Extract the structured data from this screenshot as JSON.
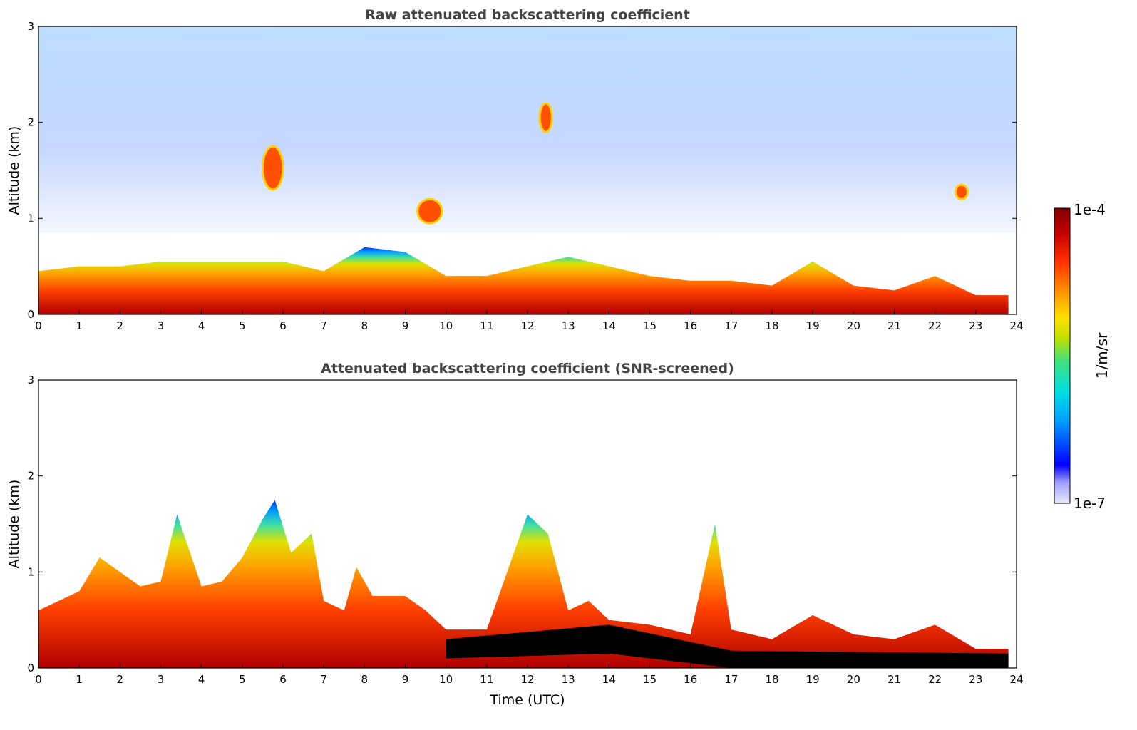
{
  "chart_data": [
    {
      "type": "heatmap",
      "title": "Raw attenuated backscattering coefficient",
      "xlabel": "",
      "ylabel": "Altitude (km)",
      "xlim": [
        0,
        24
      ],
      "ylim": [
        0,
        3
      ],
      "xticks": [
        "0",
        "1",
        "2",
        "3",
        "4",
        "5",
        "6",
        "7",
        "8",
        "9",
        "10",
        "11",
        "12",
        "13",
        "14",
        "15",
        "16",
        "17",
        "18",
        "19",
        "20",
        "21",
        "22",
        "23",
        "24"
      ],
      "yticks": [
        "0",
        "1",
        "2",
        "3"
      ],
      "layer_top_km": [
        {
          "t": 0,
          "h": 0.45
        },
        {
          "t": 1,
          "h": 0.5
        },
        {
          "t": 2,
          "h": 0.5
        },
        {
          "t": 3,
          "h": 0.55
        },
        {
          "t": 4,
          "h": 0.55
        },
        {
          "t": 5,
          "h": 0.55
        },
        {
          "t": 6,
          "h": 0.55
        },
        {
          "t": 7,
          "h": 0.45
        },
        {
          "t": 8,
          "h": 0.7
        },
        {
          "t": 9,
          "h": 0.65
        },
        {
          "t": 10,
          "h": 0.4
        },
        {
          "t": 11,
          "h": 0.4
        },
        {
          "t": 12,
          "h": 0.5
        },
        {
          "t": 13,
          "h": 0.6
        },
        {
          "t": 14,
          "h": 0.5
        },
        {
          "t": 15,
          "h": 0.4
        },
        {
          "t": 16,
          "h": 0.35
        },
        {
          "t": 17,
          "h": 0.35
        },
        {
          "t": 18,
          "h": 0.3
        },
        {
          "t": 19,
          "h": 0.55
        },
        {
          "t": 20,
          "h": 0.3
        },
        {
          "t": 21,
          "h": 0.25
        },
        {
          "t": 22,
          "h": 0.4
        },
        {
          "t": 23,
          "h": 0.2
        },
        {
          "t": 23.8,
          "h": 0.2
        }
      ],
      "features": [
        {
          "label": "cloud",
          "t0": 5.5,
          "t1": 6.0,
          "h0": 1.3,
          "h1": 1.75
        },
        {
          "label": "cloud",
          "t0": 9.3,
          "t1": 9.9,
          "h0": 0.95,
          "h1": 1.2
        },
        {
          "label": "cloud",
          "t0": 12.3,
          "t1": 12.6,
          "h0": 1.9,
          "h1": 2.2
        },
        {
          "label": "cloud",
          "t0": 22.5,
          "t1": 22.8,
          "h0": 1.2,
          "h1": 1.35
        }
      ]
    },
    {
      "type": "heatmap",
      "title": "Attenuated backscattering coefficient (SNR-screened)",
      "xlabel": "Time (UTC)",
      "ylabel": "Altitude (km)",
      "xlim": [
        0,
        24
      ],
      "ylim": [
        0,
        3
      ],
      "xticks": [
        "0",
        "1",
        "2",
        "3",
        "4",
        "5",
        "6",
        "7",
        "8",
        "9",
        "10",
        "11",
        "12",
        "13",
        "14",
        "15",
        "16",
        "17",
        "18",
        "19",
        "20",
        "21",
        "22",
        "23",
        "24"
      ],
      "yticks": [
        "0",
        "1",
        "2",
        "3"
      ],
      "mixing_top_km": [
        {
          "t": 0,
          "h": 0.6
        },
        {
          "t": 1,
          "h": 0.8
        },
        {
          "t": 1.5,
          "h": 1.15
        },
        {
          "t": 2,
          "h": 1.0
        },
        {
          "t": 2.5,
          "h": 0.85
        },
        {
          "t": 3,
          "h": 0.9
        },
        {
          "t": 3.4,
          "h": 1.6
        },
        {
          "t": 4,
          "h": 0.85
        },
        {
          "t": 4.5,
          "h": 0.9
        },
        {
          "t": 5,
          "h": 1.15
        },
        {
          "t": 5.5,
          "h": 1.55
        },
        {
          "t": 5.8,
          "h": 1.75
        },
        {
          "t": 6.2,
          "h": 1.2
        },
        {
          "t": 6.7,
          "h": 1.4
        },
        {
          "t": 7,
          "h": 0.7
        },
        {
          "t": 7.5,
          "h": 0.6
        },
        {
          "t": 7.8,
          "h": 1.05
        },
        {
          "t": 8.2,
          "h": 0.75
        },
        {
          "t": 9,
          "h": 0.75
        },
        {
          "t": 9.5,
          "h": 0.6
        },
        {
          "t": 10,
          "h": 0.4
        },
        {
          "t": 11,
          "h": 0.4
        },
        {
          "t": 12,
          "h": 1.6
        },
        {
          "t": 12.5,
          "h": 1.4
        },
        {
          "t": 13,
          "h": 0.6
        },
        {
          "t": 13.5,
          "h": 0.7
        },
        {
          "t": 14,
          "h": 0.5
        },
        {
          "t": 15,
          "h": 0.45
        },
        {
          "t": 16,
          "h": 0.35
        },
        {
          "t": 16.6,
          "h": 1.5
        },
        {
          "t": 17,
          "h": 0.4
        },
        {
          "t": 18,
          "h": 0.3
        },
        {
          "t": 19,
          "h": 0.55
        },
        {
          "t": 20,
          "h": 0.35
        },
        {
          "t": 21,
          "h": 0.3
        },
        {
          "t": 22,
          "h": 0.45
        },
        {
          "t": 23,
          "h": 0.2
        },
        {
          "t": 23.8,
          "h": 0.2
        }
      ],
      "saturated_band_km": [
        {
          "t": 10,
          "h0": 0.1,
          "h1": 0.3
        },
        {
          "t": 14,
          "h0": 0.15,
          "h1": 0.45
        },
        {
          "t": 17,
          "h0": 0.0,
          "h1": 0.18
        },
        {
          "t": 23.8,
          "h0": 0.0,
          "h1": 0.15
        }
      ]
    }
  ],
  "colorbar": {
    "min_label": "1e-7",
    "max_label": "1e-4",
    "unit_label": "1/m/sr",
    "colors": [
      "#e8e8fa",
      "#a0a0ff",
      "#0000ff",
      "#00a0ff",
      "#00e0e0",
      "#40e080",
      "#c0e000",
      "#ffe000",
      "#ff9000",
      "#ff3000",
      "#c00000",
      "#800000"
    ]
  }
}
